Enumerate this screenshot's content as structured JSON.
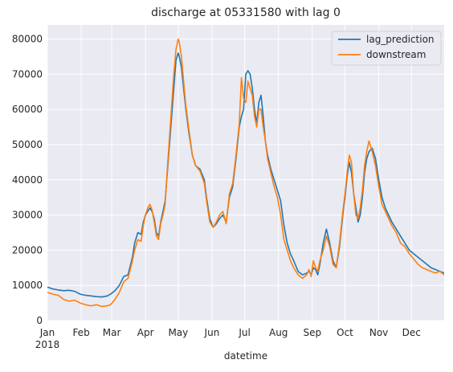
{
  "chart_data": {
    "type": "line",
    "title": "discharge at 05331580 with lag 0",
    "xlabel": "datetime",
    "ylabel": "",
    "x_ticks": [
      "Jan",
      "Feb",
      "Mar",
      "Apr",
      "May",
      "Jun",
      "Jul",
      "Aug",
      "Sep",
      "Oct",
      "Nov",
      "Dec"
    ],
    "x_year_label": "2018",
    "x_tick_days": [
      0,
      31,
      59,
      90,
      120,
      151,
      181,
      212,
      243,
      273,
      304,
      334
    ],
    "xlim_days": [
      0,
      364
    ],
    "ylim": [
      0,
      84000
    ],
    "y_ticks": [
      0,
      10000,
      20000,
      30000,
      40000,
      50000,
      60000,
      70000,
      80000
    ],
    "y_tick_labels": [
      "0",
      "10000",
      "20000",
      "30000",
      "40000",
      "50000",
      "60000",
      "70000",
      "80000"
    ],
    "grid": true,
    "legend_position": "top-right",
    "series": [
      {
        "name": "lag_prediction",
        "color": "#1f77b4",
        "x": [
          0,
          5,
          10,
          15,
          20,
          25,
          30,
          35,
          40,
          45,
          50,
          55,
          58,
          62,
          66,
          70,
          74,
          78,
          80,
          83,
          86,
          88,
          90,
          92,
          94,
          96,
          98,
          100,
          102,
          104,
          106,
          108,
          110,
          112,
          114,
          116,
          118,
          120,
          121,
          123,
          125,
          127,
          130,
          133,
          136,
          140,
          144,
          146,
          149,
          152,
          155,
          158,
          161,
          164,
          167,
          170,
          173,
          176,
          178,
          180,
          182,
          184,
          186,
          188,
          190,
          192,
          194,
          196,
          198,
          200,
          202,
          205,
          208,
          211,
          214,
          217,
          220,
          223,
          226,
          230,
          234,
          238,
          240,
          242,
          244,
          246,
          248,
          250,
          253,
          256,
          259,
          262,
          265,
          268,
          271,
          273,
          275,
          277,
          279,
          281,
          283,
          285,
          287,
          289,
          291,
          293,
          295,
          298,
          301,
          304,
          307,
          310,
          313,
          316,
          320,
          324,
          328,
          332,
          336,
          340,
          344,
          348,
          352,
          356,
          360,
          364
        ],
        "values": [
          9500,
          9000,
          8700,
          8500,
          8600,
          8300,
          7500,
          7200,
          7000,
          6800,
          6700,
          7000,
          7500,
          8500,
          10000,
          12500,
          13000,
          18000,
          22000,
          25000,
          24500,
          28000,
          30000,
          31000,
          32000,
          31000,
          29000,
          25000,
          24000,
          28000,
          31000,
          34000,
          42000,
          50000,
          58000,
          66000,
          74000,
          76000,
          75000,
          72000,
          66000,
          60000,
          53000,
          47000,
          44000,
          43000,
          40000,
          35000,
          29000,
          26500,
          27500,
          29000,
          30000,
          28000,
          35000,
          38000,
          46000,
          55000,
          58000,
          60000,
          70000,
          71000,
          70000,
          66000,
          60000,
          56000,
          62000,
          64000,
          58000,
          51000,
          47000,
          43000,
          40000,
          37000,
          34000,
          27000,
          22000,
          19000,
          17000,
          14000,
          13000,
          13500,
          14000,
          13000,
          15000,
          14500,
          13000,
          16000,
          22000,
          26000,
          22000,
          17000,
          15000,
          21000,
          30000,
          35000,
          41000,
          45000,
          42000,
          36000,
          32000,
          28000,
          30000,
          35000,
          42000,
          46000,
          48000,
          49000,
          46000,
          40000,
          35000,
          32000,
          30000,
          28000,
          26000,
          24000,
          22000,
          20000,
          19000,
          18000,
          17000,
          16000,
          15000,
          14500,
          14000,
          13500
        ],
        "x_note": "",
        "unit": ""
      },
      {
        "name": "downstream",
        "color": "#ff7f0e",
        "x": [
          0,
          5,
          10,
          15,
          20,
          25,
          30,
          35,
          40,
          45,
          50,
          55,
          58,
          62,
          66,
          70,
          74,
          78,
          80,
          83,
          86,
          88,
          90,
          92,
          94,
          96,
          98,
          100,
          102,
          104,
          106,
          108,
          110,
          112,
          114,
          116,
          118,
          120,
          121,
          123,
          125,
          127,
          130,
          133,
          136,
          140,
          144,
          146,
          149,
          152,
          155,
          158,
          161,
          164,
          167,
          170,
          173,
          176,
          178,
          180,
          182,
          184,
          186,
          188,
          190,
          192,
          194,
          196,
          198,
          200,
          202,
          205,
          208,
          211,
          214,
          217,
          220,
          223,
          226,
          230,
          234,
          238,
          240,
          242,
          244,
          246,
          248,
          250,
          253,
          256,
          259,
          262,
          265,
          268,
          271,
          273,
          275,
          277,
          279,
          281,
          283,
          285,
          287,
          289,
          291,
          293,
          295,
          298,
          301,
          304,
          307,
          310,
          313,
          316,
          320,
          324,
          328,
          332,
          336,
          340,
          344,
          348,
          352,
          356,
          360,
          364
        ],
        "values": [
          8000,
          7500,
          7200,
          6000,
          5500,
          5800,
          5000,
          4500,
          4200,
          4500,
          4000,
          4200,
          4500,
          6000,
          8000,
          11000,
          12000,
          17000,
          20000,
          23000,
          22500,
          27000,
          30000,
          32000,
          33000,
          31500,
          28000,
          24000,
          23000,
          27500,
          30000,
          33000,
          43000,
          52000,
          61000,
          70000,
          77000,
          80000,
          79000,
          75000,
          68000,
          61000,
          54000,
          47000,
          44000,
          42500,
          39000,
          34000,
          28000,
          26500,
          28000,
          30000,
          31000,
          27500,
          36000,
          39000,
          47000,
          56000,
          69000,
          63000,
          62000,
          68000,
          66000,
          64000,
          58000,
          55000,
          60000,
          60000,
          55000,
          51000,
          46000,
          42000,
          38000,
          35000,
          30000,
          23000,
          20000,
          17000,
          15000,
          13000,
          12000,
          13000,
          14500,
          12500,
          17000,
          15000,
          14000,
          17000,
          20000,
          24000,
          21000,
          16000,
          15000,
          22000,
          31000,
          36000,
          42000,
          47000,
          45000,
          36000,
          30000,
          29000,
          32000,
          37000,
          44000,
          48000,
          51000,
          48000,
          44000,
          38000,
          33000,
          31000,
          29000,
          27000,
          25000,
          22000,
          21000,
          19000,
          17500,
          16000,
          15000,
          14500,
          14000,
          13500,
          14000,
          13000
        ],
        "x_note": "",
        "unit": ""
      }
    ]
  }
}
